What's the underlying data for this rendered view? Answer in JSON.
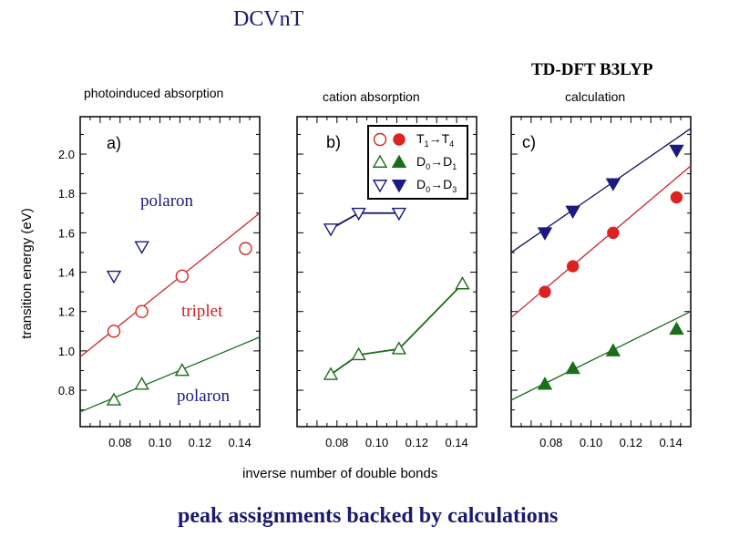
{
  "title": "DCVnT",
  "method_label": "TD-DFT B3LYP",
  "footer": "peak assignments backed by calculations",
  "colors": {
    "T1T4": "#dd2222",
    "D0D1": "#1a6e1a",
    "D0D3": "#1a1a80",
    "title": "#1a1a6e"
  },
  "legend": {
    "placement": "top-right of panel b",
    "entries": [
      {
        "label_main": "T",
        "sub1": "1",
        "arrow": "→",
        "label_main2": "T",
        "sub2": "4",
        "series": "T1T4",
        "marker": "circle"
      },
      {
        "label_main": "D",
        "sub1": "0",
        "arrow": "→",
        "label_main2": "D",
        "sub2": "1",
        "series": "D0D1",
        "marker": "triangle-up"
      },
      {
        "label_main": "D",
        "sub1": "0",
        "arrow": "→",
        "label_main2": "D",
        "sub2": "3",
        "series": "D0D3",
        "marker": "triangle-down"
      }
    ]
  },
  "chart_data": [
    {
      "type": "scatter",
      "title": "photoinduced absorption",
      "panel_label": "a)",
      "xlabel": "inverse number of double bonds",
      "ylabel": "transition energy (eV)",
      "xlim": [
        0.06,
        0.15
      ],
      "ylim": [
        0.615,
        2.19
      ],
      "xticks": [
        "0.08",
        "0.10",
        "0.12",
        "0.14"
      ],
      "yticks": [
        "0.8",
        "1.0",
        "1.2",
        "1.4",
        "1.6",
        "1.8",
        "2.0"
      ],
      "annotations": [
        {
          "text": "polaron",
          "color": "#1a1a80"
        },
        {
          "text": "triplet",
          "color": "#cc2222"
        },
        {
          "text": "polaron",
          "color": "#1a1a80"
        }
      ],
      "series": [
        {
          "key": "T1T4",
          "filled": false,
          "x": [
            0.0769,
            0.0909,
            0.1111,
            0.1429
          ],
          "y": [
            1.1,
            1.2,
            1.38,
            1.52
          ],
          "fit": [
            [
              0.06,
              0.97
            ],
            [
              0.15,
              1.7
            ]
          ]
        },
        {
          "key": "D0D1",
          "filled": false,
          "x": [
            0.0769,
            0.0909,
            0.1111
          ],
          "y": [
            0.75,
            0.83,
            0.9
          ],
          "fit": [
            [
              0.06,
              0.69
            ],
            [
              0.15,
              1.07
            ]
          ]
        },
        {
          "key": "D0D3",
          "filled": false,
          "x": [
            0.0769,
            0.0909
          ],
          "y": [
            1.38,
            1.53
          ]
        }
      ]
    },
    {
      "type": "line",
      "title": "cation absorption",
      "panel_label": "b)",
      "xlim": [
        0.06,
        0.15
      ],
      "ylim": [
        0.615,
        2.19
      ],
      "xticks": [
        "0.08",
        "0.10",
        "0.12",
        "0.14"
      ],
      "series": [
        {
          "key": "D0D3",
          "filled": false,
          "connect": true,
          "x": [
            0.0769,
            0.0909,
            0.1111
          ],
          "y": [
            1.62,
            1.7,
            1.7
          ]
        },
        {
          "key": "D0D1",
          "filled": false,
          "connect": true,
          "x": [
            0.0769,
            0.0909,
            0.1111,
            0.1429
          ],
          "y": [
            0.88,
            0.98,
            1.01,
            1.34
          ]
        }
      ]
    },
    {
      "type": "scatter",
      "title": "calculation",
      "panel_label": "c)",
      "xlim": [
        0.06,
        0.15
      ],
      "ylim": [
        0.615,
        2.19
      ],
      "xticks": [
        "0.08",
        "0.10",
        "0.12",
        "0.14"
      ],
      "series": [
        {
          "key": "D0D3",
          "filled": true,
          "x": [
            0.0769,
            0.0909,
            0.1111,
            0.1429
          ],
          "y": [
            1.6,
            1.71,
            1.85,
            2.02
          ],
          "fit": [
            [
              0.06,
              1.5
            ],
            [
              0.15,
              2.13
            ]
          ]
        },
        {
          "key": "T1T4",
          "filled": true,
          "x": [
            0.0769,
            0.0909,
            0.1111,
            0.1429
          ],
          "y": [
            1.3,
            1.43,
            1.6,
            1.78
          ],
          "fit": [
            [
              0.06,
              1.17
            ],
            [
              0.15,
              1.94
            ]
          ]
        },
        {
          "key": "D0D1",
          "filled": true,
          "x": [
            0.0769,
            0.0909,
            0.1111,
            0.1429
          ],
          "y": [
            0.83,
            0.91,
            1.0,
            1.11
          ],
          "fit": [
            [
              0.06,
              0.75
            ],
            [
              0.15,
              1.2
            ]
          ]
        }
      ]
    }
  ]
}
